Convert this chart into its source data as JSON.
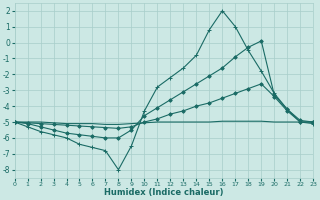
{
  "xlabel": "Humidex (Indice chaleur)",
  "xlim": [
    0,
    23
  ],
  "ylim": [
    -8.5,
    2.5
  ],
  "yticks": [
    2,
    1,
    0,
    -1,
    -2,
    -3,
    -4,
    -5,
    -6,
    -7,
    -8
  ],
  "xticks": [
    0,
    1,
    2,
    3,
    4,
    5,
    6,
    7,
    8,
    9,
    10,
    11,
    12,
    13,
    14,
    15,
    16,
    17,
    18,
    19,
    20,
    21,
    22,
    23
  ],
  "background_color": "#cce8e4",
  "grid_color": "#a8ceca",
  "line_color": "#1a6b65",
  "series": [
    {
      "marker": "+",
      "x": [
        0,
        1,
        2,
        3,
        4,
        5,
        6,
        7,
        8,
        9,
        10,
        11,
        12,
        13,
        14,
        15,
        16,
        17,
        18,
        19,
        20,
        21,
        22,
        23
      ],
      "y": [
        -5.0,
        -5.3,
        -5.6,
        -5.8,
        -6.0,
        -6.4,
        -6.6,
        -6.8,
        -8.0,
        -6.5,
        -4.3,
        -2.8,
        -2.2,
        -1.6,
        -0.8,
        0.8,
        2.0,
        1.0,
        -0.5,
        -1.8,
        -3.2,
        -4.2,
        -5.0,
        -5.1
      ]
    },
    {
      "marker": "D",
      "x": [
        0,
        1,
        2,
        3,
        4,
        5,
        6,
        7,
        8,
        9,
        10,
        11,
        12,
        13,
        14,
        15,
        16,
        17,
        18,
        19,
        20,
        21,
        22,
        23
      ],
      "y": [
        -5.0,
        -5.1,
        -5.3,
        -5.5,
        -5.7,
        -5.8,
        -5.9,
        -6.0,
        -6.0,
        -5.5,
        -4.6,
        -4.1,
        -3.6,
        -3.1,
        -2.6,
        -2.1,
        -1.6,
        -0.9,
        -0.3,
        0.1,
        -3.3,
        -4.2,
        -4.9,
        -5.0
      ]
    },
    {
      "marker": "D",
      "x": [
        0,
        1,
        2,
        3,
        4,
        5,
        6,
        7,
        8,
        9,
        10,
        11,
        12,
        13,
        14,
        15,
        16,
        17,
        18,
        19,
        20,
        21,
        22,
        23
      ],
      "y": [
        -5.0,
        -5.05,
        -5.1,
        -5.15,
        -5.2,
        -5.25,
        -5.3,
        -5.35,
        -5.4,
        -5.3,
        -5.0,
        -4.8,
        -4.5,
        -4.3,
        -4.0,
        -3.8,
        -3.5,
        -3.2,
        -2.9,
        -2.6,
        -3.4,
        -4.3,
        -5.0,
        -5.0
      ]
    },
    {
      "marker": null,
      "x": [
        0,
        1,
        2,
        3,
        4,
        5,
        6,
        7,
        8,
        9,
        10,
        11,
        12,
        13,
        14,
        15,
        16,
        17,
        18,
        19,
        20,
        21,
        22,
        23
      ],
      "y": [
        -5.0,
        -5.0,
        -5.0,
        -5.05,
        -5.1,
        -5.1,
        -5.1,
        -5.15,
        -5.15,
        -5.1,
        -5.05,
        -5.0,
        -5.0,
        -5.0,
        -5.0,
        -5.0,
        -4.95,
        -4.95,
        -4.95,
        -4.95,
        -5.0,
        -5.0,
        -5.0,
        -5.0
      ]
    }
  ]
}
